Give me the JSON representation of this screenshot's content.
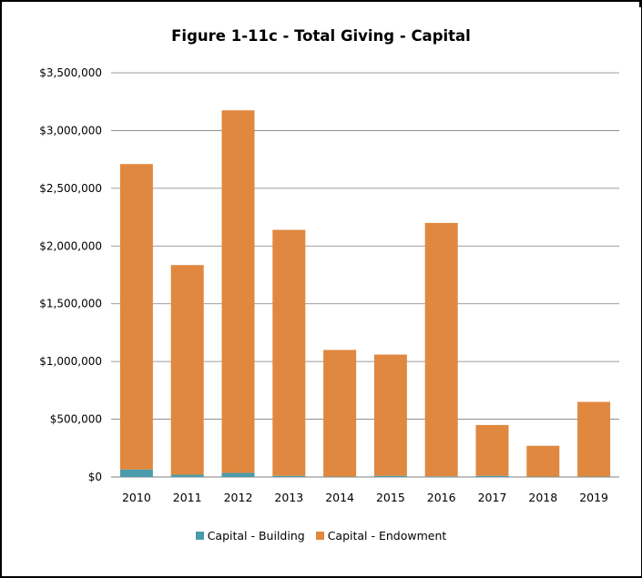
{
  "chart_data": {
    "type": "bar",
    "stacked": true,
    "title": "Figure 1-11c - Total Giving - Capital",
    "xlabel": "",
    "ylabel": "",
    "categories": [
      "2010",
      "2011",
      "2012",
      "2013",
      "2014",
      "2015",
      "2016",
      "2017",
      "2018",
      "2019"
    ],
    "series": [
      {
        "name": "Capital - Building",
        "color": "#4a9bab",
        "values": [
          65000,
          20000,
          35000,
          10000,
          3000,
          10000,
          5000,
          10000,
          3000,
          3000
        ]
      },
      {
        "name": "Capital - Endowment",
        "color": "#e0883f",
        "values": [
          2645000,
          1815000,
          3140000,
          2130000,
          1097000,
          1050000,
          2195000,
          440000,
          267000,
          647000
        ]
      }
    ],
    "ylim": [
      0,
      3500000
    ],
    "yticks": [
      0,
      500000,
      1000000,
      1500000,
      2000000,
      2500000,
      3000000,
      3500000
    ],
    "ytick_labels": [
      "$0",
      "$500,000",
      "$1,000,000",
      "$1,500,000",
      "$2,000,000",
      "$2,500,000",
      "$3,000,000",
      "$3,500,000"
    ],
    "grid": true,
    "legend_position": "bottom"
  }
}
